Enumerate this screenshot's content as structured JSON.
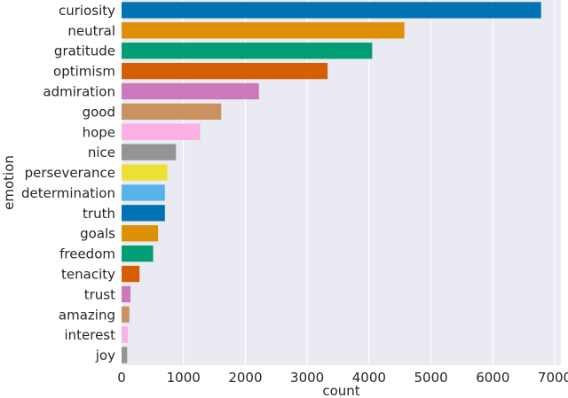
{
  "chart_data": {
    "type": "bar",
    "orientation": "horizontal",
    "categories": [
      "curiosity",
      "neutral",
      "gratitude",
      "optimism",
      "admiration",
      "good",
      "hope",
      "nice",
      "perseverance",
      "determination",
      "truth",
      "goals",
      "freedom",
      "tenacity",
      "trust",
      "amazing",
      "interest",
      "joy"
    ],
    "values": [
      6780,
      4570,
      4050,
      3330,
      2220,
      1610,
      1270,
      880,
      740,
      700,
      700,
      590,
      510,
      290,
      145,
      125,
      100,
      90
    ],
    "colors": [
      "#0173b2",
      "#de8f05",
      "#029e73",
      "#d55e00",
      "#cc78bc",
      "#ca9161",
      "#fbafe4",
      "#949494",
      "#ece133",
      "#56b4e9",
      "#0173b2",
      "#de8f05",
      "#029e73",
      "#d55e00",
      "#cc78bc",
      "#ca9161",
      "#fbafe4",
      "#949494"
    ],
    "xlabel": "count",
    "ylabel": "emotion",
    "xlim": [
      0,
      7100
    ],
    "xticks": [
      0,
      1000,
      2000,
      3000,
      4000,
      5000,
      6000,
      7000
    ],
    "grid": "vertical",
    "legend": "none",
    "background": "#eaeaf2"
  }
}
